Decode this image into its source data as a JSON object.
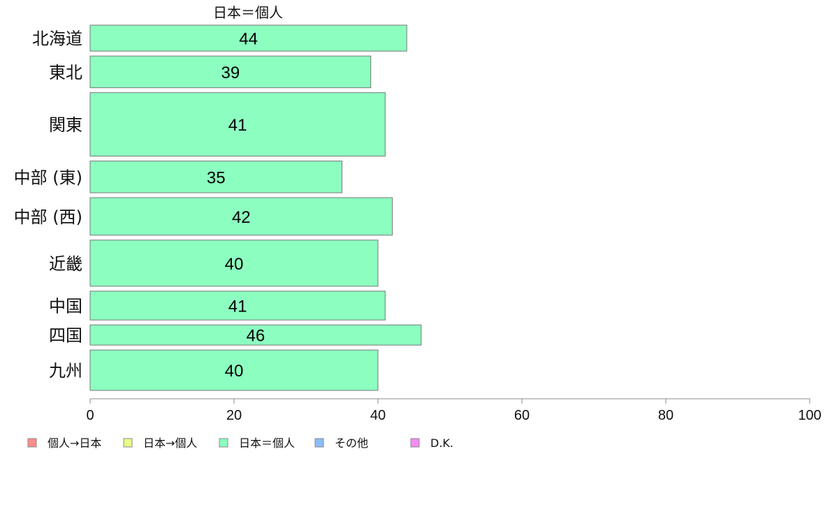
{
  "chart_data": {
    "type": "bar",
    "orientation": "horizontal",
    "title": "日本＝個人",
    "categories": [
      "北海道",
      "東北",
      "関東",
      "中部 (東)",
      "中部 (西)",
      "近畿",
      "中国",
      "四国",
      "九州"
    ],
    "values": [
      44,
      39,
      41,
      35,
      42,
      40,
      41,
      46,
      40
    ],
    "value_labels": [
      "44",
      "39",
      "41",
      "35",
      "42",
      "40",
      "41",
      "46",
      "40"
    ],
    "relative_widths": [
      0.9,
      1.1,
      2.2,
      1.1,
      1.3,
      1.6,
      1.0,
      0.7,
      1.4
    ],
    "xlim": [
      0,
      100
    ],
    "xticks": [
      0,
      20,
      40,
      60,
      80,
      100
    ],
    "xtick_labels": [
      "0",
      "20",
      "40",
      "60",
      "80",
      "100"
    ],
    "grid": false,
    "bar_color": "#8cffc0",
    "bar_edge": "#777777",
    "legend": {
      "placement": "bottom",
      "items": [
        {
          "label": "個人→日本",
          "color": "#ff8c8c"
        },
        {
          "label": "日本→個人",
          "color": "#e6ff8c"
        },
        {
          "label": "日本＝個人",
          "color": "#8cffc0"
        },
        {
          "label": "その他",
          "color": "#8cbcff"
        },
        {
          "label": "D.K.",
          "color": "#f58cf5"
        }
      ]
    }
  }
}
